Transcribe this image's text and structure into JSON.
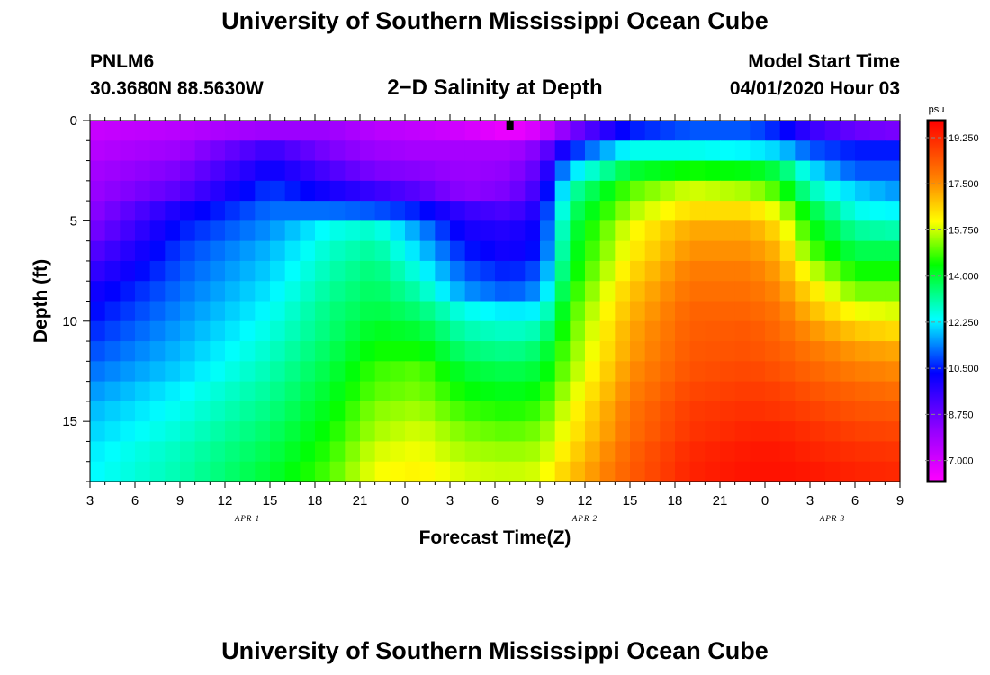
{
  "header": {
    "title": "University of Southern Mississippi Ocean Cube",
    "station_id": "PNLM6",
    "coordinates": "30.3680N 88.5630W",
    "plot_title": "2−D Salinity at Depth",
    "start_label": "Model Start Time",
    "start_value": "04/01/2020 Hour 03"
  },
  "footer": {
    "title": "University of Southern Mississippi Ocean Cube"
  },
  "chart_data": {
    "type": "heatmap",
    "title": "2−D Salinity at Depth",
    "xlabel": "Forecast Time(Z)",
    "ylabel": "Depth (ft)",
    "x_tick_labels": [
      "3",
      "6",
      "9",
      "12",
      "15",
      "18",
      "21",
      "0",
      "3",
      "6",
      "9",
      "12",
      "15",
      "18",
      "21",
      "0",
      "3",
      "6",
      "9"
    ],
    "x_hours": [
      0,
      3,
      6,
      9,
      12,
      15,
      18,
      21,
      24,
      27,
      30,
      33,
      36,
      39,
      42,
      45,
      48,
      51,
      54
    ],
    "date_labels": [
      {
        "text": "APR 1",
        "hour": 10.5
      },
      {
        "text": "APR 2",
        "hour": 33
      },
      {
        "text": "APR 3",
        "hour": 49.5
      }
    ],
    "y_tick_labels": [
      "0",
      "5",
      "10",
      "15"
    ],
    "y_ticks": [
      0,
      5,
      10,
      15
    ],
    "ylim": [
      0,
      18
    ],
    "xlim": [
      0,
      54
    ],
    "colorbar": {
      "unit": "psu",
      "min": 6.2,
      "max": 19.9,
      "tick_values": [
        7.0,
        8.75,
        10.5,
        12.25,
        14.0,
        15.75,
        17.5,
        19.25
      ],
      "tick_labels": [
        "7.000",
        "8.750",
        "10.500",
        "12.250",
        "14.000",
        "15.750",
        "17.500",
        "19.250"
      ]
    },
    "marker_hour": 28,
    "time_hours": [
      0,
      6,
      12,
      16,
      19,
      22,
      25,
      28,
      30,
      32,
      36,
      40,
      44,
      46,
      48,
      51,
      54
    ],
    "depth_rows": [
      0.5,
      1.5,
      2.5,
      3.5,
      4.5,
      5.5,
      6.5,
      7.5,
      8.5,
      9.5,
      10.5,
      11.5,
      12.5,
      13.5,
      14.5,
      15.5,
      16.5,
      17.5
    ],
    "salinity_psu": [
      [
        7.2,
        7.5,
        8.0,
        8.0,
        7.5,
        7.3,
        7.0,
        6.5,
        7.0,
        8.5,
        10.5,
        11.0,
        11.0,
        10.5,
        9.5,
        8.8,
        8.5
      ],
      [
        7.5,
        8.0,
        9.5,
        8.5,
        8.0,
        7.8,
        7.8,
        7.8,
        8.5,
        10.5,
        12.5,
        12.5,
        12.3,
        12.0,
        11.0,
        10.5,
        10.5
      ],
      [
        7.8,
        8.5,
        10.2,
        9.2,
        8.5,
        8.3,
        8.0,
        8.2,
        9.0,
        12.0,
        14.0,
        14.5,
        14.3,
        13.8,
        12.2,
        11.0,
        11.0
      ],
      [
        8.0,
        9.0,
        10.8,
        10.0,
        9.5,
        9.0,
        8.2,
        8.5,
        9.5,
        13.0,
        15.0,
        15.8,
        15.5,
        14.8,
        13.0,
        12.0,
        11.5
      ],
      [
        8.2,
        10.0,
        11.2,
        11.2,
        11.0,
        10.5,
        9.5,
        9.2,
        10.0,
        13.5,
        15.5,
        16.5,
        16.5,
        15.8,
        14.0,
        12.5,
        12.3
      ],
      [
        8.5,
        10.5,
        11.5,
        12.5,
        12.8,
        11.5,
        10.0,
        9.8,
        10.3,
        13.8,
        16.0,
        17.2,
        17.2,
        16.5,
        14.5,
        13.2,
        13.0
      ],
      [
        9.0,
        10.8,
        11.8,
        12.8,
        13.2,
        12.0,
        10.5,
        10.0,
        10.5,
        14.0,
        16.2,
        17.5,
        17.5,
        17.0,
        15.0,
        13.8,
        13.8
      ],
      [
        9.5,
        11.0,
        12.0,
        13.0,
        13.5,
        12.5,
        11.0,
        10.5,
        11.0,
        14.2,
        16.5,
        17.8,
        17.8,
        17.3,
        15.8,
        14.5,
        14.5
      ],
      [
        10.0,
        11.2,
        12.2,
        13.2,
        13.7,
        13.0,
        11.5,
        11.0,
        11.5,
        14.5,
        16.8,
        18.0,
        18.0,
        17.6,
        16.5,
        15.2,
        15.2
      ],
      [
        10.3,
        11.4,
        12.4,
        13.4,
        13.9,
        13.5,
        12.5,
        12.2,
        12.3,
        14.8,
        17.0,
        18.2,
        18.2,
        17.9,
        17.0,
        16.0,
        15.8
      ],
      [
        10.6,
        11.6,
        12.6,
        13.5,
        14.2,
        14.0,
        13.0,
        12.8,
        13.0,
        15.0,
        17.2,
        18.3,
        18.4,
        18.1,
        17.5,
        16.8,
        16.5
      ],
      [
        10.9,
        11.8,
        12.8,
        13.7,
        14.5,
        14.5,
        13.5,
        13.3,
        13.6,
        15.2,
        17.3,
        18.4,
        18.5,
        18.3,
        17.9,
        17.4,
        17.2
      ],
      [
        11.2,
        12.0,
        13.0,
        13.9,
        14.8,
        15.0,
        14.0,
        13.8,
        14.0,
        15.4,
        17.5,
        18.5,
        18.7,
        18.5,
        18.2,
        17.8,
        17.6
      ],
      [
        11.5,
        12.3,
        13.2,
        14.1,
        15.0,
        15.2,
        14.4,
        14.2,
        14.4,
        15.7,
        17.7,
        18.7,
        18.9,
        18.8,
        18.5,
        18.2,
        18.0
      ],
      [
        11.8,
        12.5,
        13.4,
        14.3,
        15.3,
        15.5,
        14.8,
        14.6,
        14.8,
        16.0,
        17.9,
        18.9,
        19.1,
        19.0,
        18.8,
        18.5,
        18.4
      ],
      [
        12.0,
        12.7,
        13.6,
        14.5,
        15.5,
        15.8,
        15.2,
        15.0,
        15.2,
        16.2,
        18.0,
        19.0,
        19.3,
        19.3,
        19.1,
        18.8,
        18.7
      ],
      [
        12.2,
        12.9,
        13.8,
        14.7,
        15.8,
        16.0,
        15.5,
        15.4,
        15.5,
        16.5,
        18.2,
        19.2,
        19.5,
        19.5,
        19.3,
        19.1,
        19.0
      ],
      [
        12.3,
        13.0,
        14.0,
        14.9,
        16.0,
        16.2,
        15.8,
        15.7,
        15.8,
        16.8,
        18.3,
        19.3,
        19.6,
        19.6,
        19.5,
        19.3,
        19.2
      ]
    ]
  }
}
